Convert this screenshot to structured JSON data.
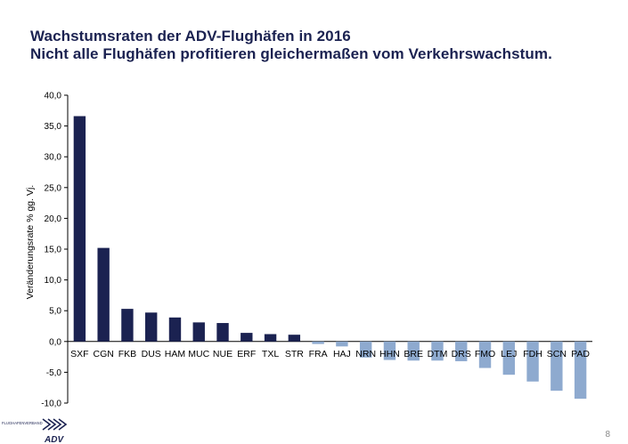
{
  "header": {
    "title": "Wachstumsraten der ADV-Flughäfen in 2016",
    "subtitle": "Nicht alle Flughäfen profitieren gleichermaßen vom Verkehrswachstum."
  },
  "footer": {
    "logo_text": "FLUGHAFENVERBAND",
    "logo_mark": "ADV",
    "page_number": "8"
  },
  "colors": {
    "positive": "#1b2251",
    "negative": "#8eaacf",
    "title": "#1b2251"
  },
  "chart_data": {
    "type": "bar",
    "title": "",
    "xlabel": "",
    "ylabel": "Veränderungsrate % gg. Vj.",
    "ylim": [
      -10,
      40
    ],
    "yticks": [
      -10,
      -5,
      0,
      5,
      10,
      15,
      20,
      25,
      30,
      35,
      40
    ],
    "ytick_labels": [
      "-10,0",
      "-5,0",
      "0,0",
      "5,0",
      "10,0",
      "15,0",
      "20,0",
      "25,0",
      "30,0",
      "35,0",
      "40,0"
    ],
    "grid": false,
    "legend": "none",
    "categories": [
      "SXF",
      "CGN",
      "FKB",
      "DUS",
      "HAM",
      "MUC",
      "NUE",
      "ERF",
      "TXL",
      "STR",
      "FRA",
      "HAJ",
      "NRN",
      "HHN",
      "BRE",
      "DTM",
      "DRS",
      "FMO",
      "LEJ",
      "FDH",
      "SCN",
      "PAD"
    ],
    "values": [
      36.6,
      15.2,
      5.3,
      4.7,
      3.9,
      3.1,
      3.0,
      1.4,
      1.2,
      1.1,
      -0.4,
      -0.8,
      -2.6,
      -3.0,
      -3.1,
      -3.1,
      -3.2,
      -4.3,
      -5.4,
      -6.5,
      -8.0,
      -9.3
    ]
  }
}
